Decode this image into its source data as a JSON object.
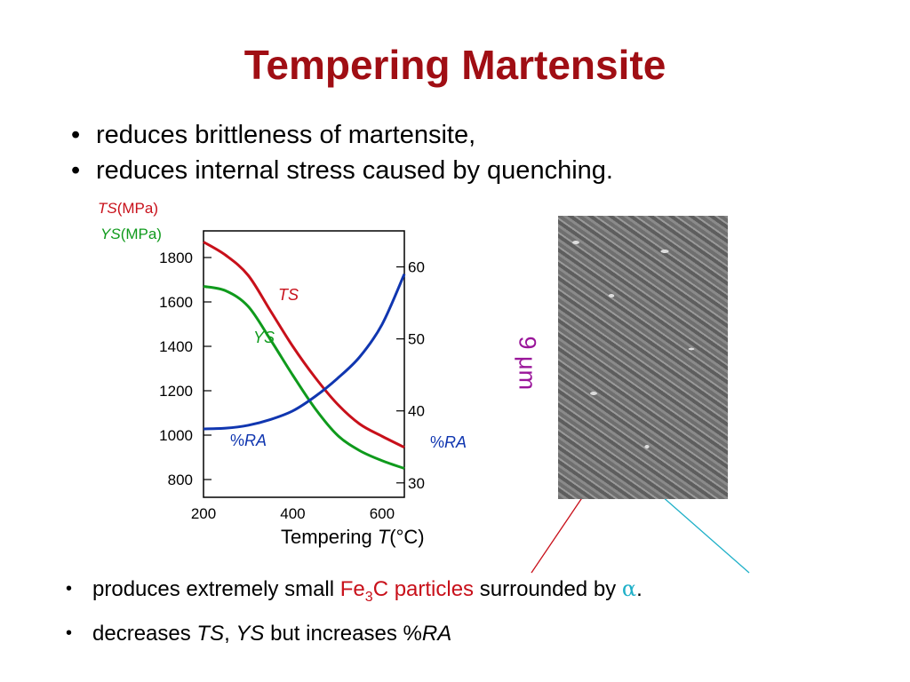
{
  "slide": {
    "title": "Tempering Martensite",
    "top_bullets": [
      "reduces brittleness of martensite,",
      "reduces internal stress caused by quenching."
    ],
    "bottom_bullets": {
      "b1": {
        "pre": "produces extremely small ",
        "fe": "Fe",
        "sub": "3",
        "particles": "C particles",
        "mid": " surrounded by ",
        "alpha": "α",
        "end": "."
      },
      "b2": {
        "pre": "decreases ",
        "ts": "TS",
        "comma": ", ",
        "ys": "YS",
        "mid": " but increases %",
        "ra": "RA"
      }
    },
    "bullet_glyph": "•",
    "micrograph_scale": "9 μm",
    "colors": {
      "title": "#a00e14",
      "ts": "#c8101a",
      "ys": "#0f9a1c",
      "ra": "#1036b0",
      "arrow_cyan": "#1fb0c8",
      "scale_label": "#9a169a"
    }
  },
  "chart_data": {
    "type": "line",
    "xlabel": "Tempering T(°C)",
    "xlabel_parts": {
      "pre": "Tempering ",
      "var": "T",
      "unit": "(°C)"
    },
    "xlim": [
      200,
      650
    ],
    "xticks": [
      200,
      400,
      600
    ],
    "left_axis": {
      "label_ts": {
        "var": "TS",
        "unit": "(MPa)"
      },
      "label_ys": {
        "var": "YS",
        "unit": "(MPa)"
      },
      "ylim": [
        720,
        1920
      ],
      "ticks": [
        800,
        1000,
        1200,
        1400,
        1600,
        1800
      ]
    },
    "right_axis": {
      "label": {
        "pre": "%",
        "var": "RA"
      },
      "ylim": [
        28,
        65
      ],
      "ticks": [
        30,
        40,
        50,
        60
      ]
    },
    "series": [
      {
        "name": "TS",
        "axis": "left",
        "x": [
          200,
          250,
          300,
          350,
          400,
          450,
          500,
          550,
          600,
          650
        ],
        "y": [
          1870,
          1810,
          1720,
          1560,
          1400,
          1260,
          1140,
          1050,
          995,
          945
        ]
      },
      {
        "name": "YS",
        "axis": "left",
        "x": [
          200,
          250,
          300,
          350,
          400,
          450,
          500,
          550,
          600,
          650
        ],
        "y": [
          1670,
          1650,
          1580,
          1430,
          1270,
          1120,
          1000,
          930,
          885,
          850
        ]
      },
      {
        "name": "%RA",
        "axis": "right",
        "x": [
          200,
          250,
          300,
          350,
          400,
          450,
          500,
          550,
          600,
          650
        ],
        "y": [
          37.5,
          37.6,
          38.0,
          38.8,
          40.0,
          42.0,
          44.5,
          47.5,
          52.0,
          59.0
        ]
      }
    ],
    "annotations": {
      "ts": "TS",
      "ys": "YS",
      "ra_pct": "%",
      "ra": "RA"
    }
  }
}
